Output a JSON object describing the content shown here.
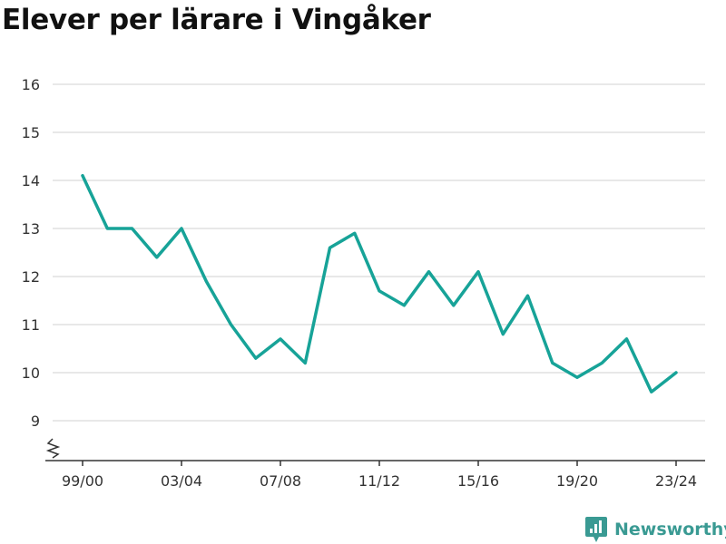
{
  "title": "Elever per lärare i Vingåker",
  "brand": {
    "name": "Newsworthy",
    "icon": "newsworthy-logo-icon"
  },
  "colors": {
    "line": "#17a398",
    "grid": "#d9d9d9",
    "axis": "#333333",
    "brand": "#3a9a93"
  },
  "chart_data": {
    "type": "line",
    "title": "Elever per lärare i Vingåker",
    "xlabel": "",
    "ylabel": "",
    "ylim": [
      8.2,
      16
    ],
    "y_ticks": [
      9,
      10,
      11,
      12,
      13,
      14,
      15,
      16
    ],
    "x_tick_labels": [
      "99/00",
      "03/04",
      "07/08",
      "11/12",
      "15/16",
      "19/20",
      "23/24"
    ],
    "axis_break": true,
    "grid": true,
    "series": [
      {
        "name": "",
        "x": [
          "99/00",
          "00/01",
          "01/02",
          "02/03",
          "03/04",
          "04/05",
          "05/06",
          "06/07",
          "07/08",
          "08/09",
          "09/10",
          "10/11",
          "11/12",
          "12/13",
          "13/14",
          "14/15",
          "15/16",
          "16/17",
          "17/18",
          "18/19",
          "19/20",
          "20/21",
          "21/22",
          "22/23",
          "23/24"
        ],
        "values": [
          14.1,
          13.0,
          13.0,
          12.4,
          13.0,
          11.9,
          11.0,
          10.3,
          10.7,
          10.2,
          12.6,
          12.9,
          11.7,
          11.4,
          12.1,
          11.4,
          12.1,
          10.8,
          11.6,
          10.2,
          9.9,
          10.2,
          10.7,
          9.6,
          10.0
        ]
      }
    ]
  }
}
